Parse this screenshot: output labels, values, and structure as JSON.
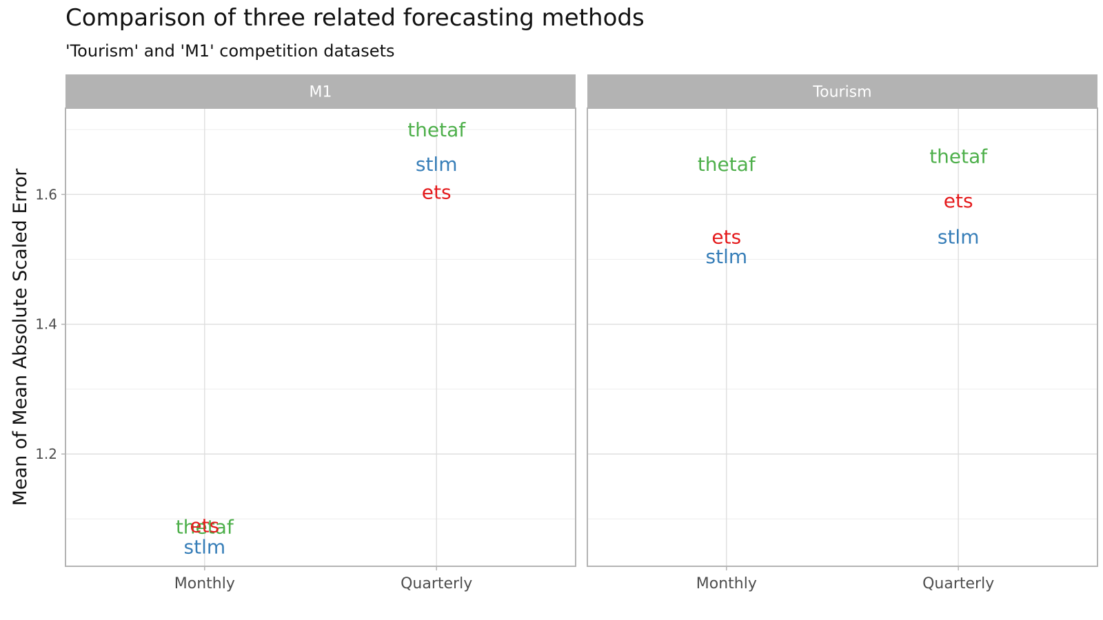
{
  "chart_data": {
    "type": "scatter",
    "title": "Comparison of three related forecasting methods",
    "subtitle": "'Tourism' and 'M1' competition datasets",
    "ylabel": "Mean of Mean Absolute Scaled Error",
    "xlabel": "",
    "ylim": [
      1.027,
      1.733
    ],
    "yticks": [
      1.2,
      1.4,
      1.6
    ],
    "categories": [
      "Monthly",
      "Quarterly"
    ],
    "grid": true,
    "legend": "none",
    "facets": [
      {
        "name": "M1",
        "series": [
          {
            "name": "thetaf",
            "color": "#4daf4a",
            "values": [
              1.088,
              1.7
            ]
          },
          {
            "name": "stlm",
            "color": "#377eb8",
            "values": [
              1.057,
              1.647
            ]
          },
          {
            "name": "ets",
            "color": "#e41a1c",
            "values": [
              1.09,
              1.604
            ]
          }
        ]
      },
      {
        "name": "Tourism",
        "series": [
          {
            "name": "thetaf",
            "color": "#4daf4a",
            "values": [
              1.647,
              1.659
            ]
          },
          {
            "name": "stlm",
            "color": "#377eb8",
            "values": [
              1.505,
              1.535
            ]
          },
          {
            "name": "ets",
            "color": "#e41a1c",
            "values": [
              1.535,
              1.591
            ]
          }
        ]
      }
    ]
  }
}
